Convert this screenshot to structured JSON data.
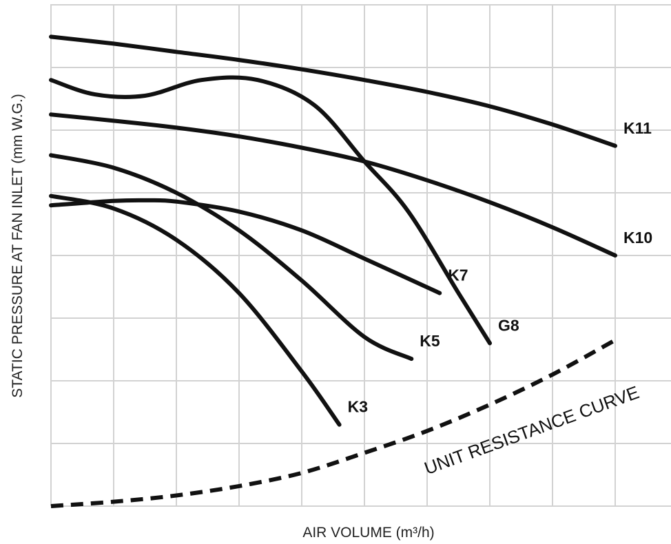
{
  "chart_data": {
    "type": "line",
    "xlabel": "AIR VOLUME (m³/h)",
    "ylabel": "STATIC PRESSURE AT FAN INLET (mm W.G.)",
    "xlim": [
      0,
      10
    ],
    "ylim": [
      0,
      8
    ],
    "grid": true,
    "tick_labels": "none",
    "series": [
      {
        "name": "K11",
        "style": "solid",
        "x": [
          0,
          1,
          2,
          3,
          4,
          5,
          6,
          7,
          8,
          9
        ],
        "y": [
          7.49,
          7.38,
          7.25,
          7.12,
          6.97,
          6.8,
          6.61,
          6.38,
          6.09,
          5.75
        ]
      },
      {
        "name": "G8",
        "style": "solid",
        "x": [
          0,
          0.7,
          1.5,
          2.4,
          3.3,
          4.2,
          5.0,
          5.7,
          6.5,
          7.0
        ],
        "y": [
          6.8,
          6.57,
          6.55,
          6.8,
          6.8,
          6.4,
          5.5,
          4.7,
          3.4,
          2.6
        ]
      },
      {
        "name": "K10",
        "style": "solid",
        "x": [
          0,
          1,
          2,
          3,
          4,
          5,
          6,
          7,
          8,
          9
        ],
        "y": [
          6.25,
          6.15,
          6.04,
          5.9,
          5.72,
          5.5,
          5.2,
          4.85,
          4.45,
          4.0
        ]
      },
      {
        "name": "K7",
        "style": "solid",
        "x": [
          0,
          1,
          1.5,
          2,
          3,
          4,
          5,
          6.2
        ],
        "y": [
          4.8,
          4.87,
          4.88,
          4.86,
          4.7,
          4.4,
          3.95,
          3.4
        ]
      },
      {
        "name": "K5",
        "style": "solid",
        "x": [
          0,
          1,
          2,
          3,
          4,
          5,
          5.75
        ],
        "y": [
          5.6,
          5.4,
          5.0,
          4.4,
          3.6,
          2.7,
          2.35
        ]
      },
      {
        "name": "K3",
        "style": "solid",
        "x": [
          0,
          1,
          2,
          3,
          4,
          4.6
        ],
        "y": [
          4.95,
          4.75,
          4.25,
          3.4,
          2.15,
          1.3
        ]
      },
      {
        "name": "UNIT RESISTANCE CURVE",
        "style": "dashed",
        "x": [
          0,
          1,
          2,
          3,
          4,
          5,
          6,
          7,
          8,
          9
        ],
        "y": [
          0,
          0.07,
          0.17,
          0.32,
          0.53,
          0.85,
          1.2,
          1.62,
          2.1,
          2.65
        ]
      }
    ]
  }
}
